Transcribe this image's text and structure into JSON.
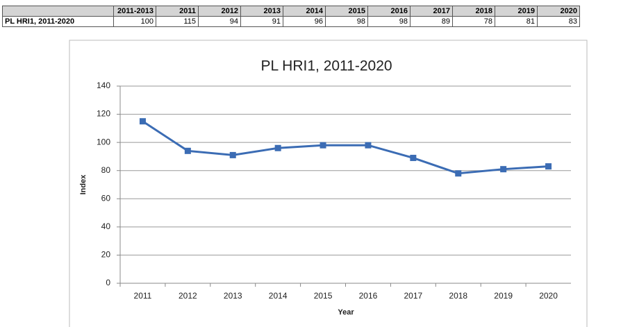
{
  "table": {
    "header": [
      "2011-2013",
      "2011",
      "2012",
      "2013",
      "2014",
      "2015",
      "2016",
      "2017",
      "2018",
      "2019",
      "2020"
    ],
    "rows": [
      {
        "label": "PL HRI1, 2011-2020",
        "values": [
          100,
          115,
          94,
          91,
          96,
          98,
          98,
          89,
          78,
          81,
          83
        ]
      }
    ]
  },
  "chart_data": {
    "type": "line",
    "title": "PL HRI1, 2011-2020",
    "x_label": "Year",
    "y_label": "Index",
    "categories": [
      "2011",
      "2012",
      "2013",
      "2014",
      "2015",
      "2016",
      "2017",
      "2018",
      "2019",
      "2020"
    ],
    "series": [
      {
        "name": "PL HRI1, 2011-2020",
        "color": "#3b6cb4",
        "values": [
          115,
          94,
          91,
          96,
          98,
          98,
          89,
          78,
          81,
          83
        ]
      }
    ],
    "ylim": [
      0,
      140
    ],
    "yticks": [
      0,
      20,
      40,
      60,
      80,
      100,
      120,
      140
    ],
    "grid": true
  }
}
